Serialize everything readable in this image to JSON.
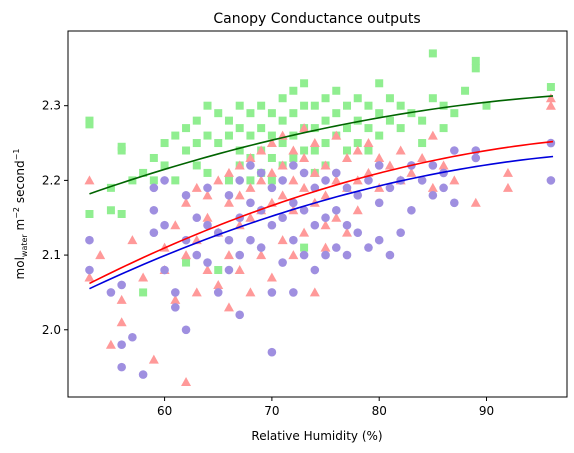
{
  "chart_data": {
    "type": "scatter",
    "title": "Canopy Conductance outputs",
    "xlabel": "Relative Humidity (%)",
    "ylabel": {
      "main": "mol",
      "sub": "water",
      "rest": " m",
      "exp1": "−2",
      "mid": " second",
      "exp2": "−1"
    },
    "xlim": [
      51,
      97.5
    ],
    "ylim": [
      1.91,
      2.4
    ],
    "x_ticks": [
      60,
      70,
      80,
      90
    ],
    "y_ticks": [
      2.0,
      2.1,
      2.2,
      2.3
    ],
    "grid": false,
    "legend": "none",
    "series": [
      {
        "marker": "square",
        "color": "#90ee90",
        "points": [
          [
            53,
            2.28
          ],
          [
            53,
            2.275
          ],
          [
            53,
            2.155
          ],
          [
            55,
            2.19
          ],
          [
            55,
            2.16
          ],
          [
            56,
            2.245
          ],
          [
            56,
            2.24
          ],
          [
            56,
            2.155
          ],
          [
            57,
            2.2
          ],
          [
            58,
            2.21
          ],
          [
            58,
            2.05
          ],
          [
            59,
            2.23
          ],
          [
            59,
            2.2
          ],
          [
            60,
            2.22
          ],
          [
            60,
            2.25
          ],
          [
            61,
            2.26
          ],
          [
            61,
            2.2
          ],
          [
            62,
            2.27
          ],
          [
            62,
            2.24
          ],
          [
            62,
            2.09
          ],
          [
            63,
            2.28
          ],
          [
            63,
            2.25
          ],
          [
            63,
            2.22
          ],
          [
            64,
            2.3
          ],
          [
            64,
            2.26
          ],
          [
            64,
            2.21
          ],
          [
            65,
            2.29
          ],
          [
            65,
            2.25
          ],
          [
            65,
            2.08
          ],
          [
            66,
            2.28
          ],
          [
            66,
            2.26
          ],
          [
            66,
            2.2
          ],
          [
            67,
            2.3
          ],
          [
            67,
            2.27
          ],
          [
            67,
            2.24
          ],
          [
            67,
            2.22
          ],
          [
            68,
            2.29
          ],
          [
            68,
            2.26
          ],
          [
            68,
            2.23
          ],
          [
            68,
            2.2
          ],
          [
            69,
            2.3
          ],
          [
            69,
            2.27
          ],
          [
            69,
            2.24
          ],
          [
            69,
            2.21
          ],
          [
            70,
            2.29
          ],
          [
            70,
            2.26
          ],
          [
            70,
            2.23
          ],
          [
            70,
            2.2
          ],
          [
            71,
            2.31
          ],
          [
            71,
            2.28
          ],
          [
            71,
            2.25
          ],
          [
            71,
            2.22
          ],
          [
            72,
            2.32
          ],
          [
            72,
            2.29
          ],
          [
            72,
            2.26
          ],
          [
            72,
            2.23
          ],
          [
            73,
            2.33
          ],
          [
            73,
            2.3
          ],
          [
            73,
            2.27
          ],
          [
            73,
            2.24
          ],
          [
            73,
            2.11
          ],
          [
            74,
            2.3
          ],
          [
            74,
            2.27
          ],
          [
            74,
            2.24
          ],
          [
            74,
            2.21
          ],
          [
            75,
            2.31
          ],
          [
            75,
            2.28
          ],
          [
            75,
            2.25
          ],
          [
            75,
            2.22
          ],
          [
            76,
            2.32
          ],
          [
            76,
            2.29
          ],
          [
            76,
            2.26
          ],
          [
            77,
            2.3
          ],
          [
            77,
            2.27
          ],
          [
            77,
            2.24
          ],
          [
            78,
            2.31
          ],
          [
            78,
            2.28
          ],
          [
            78,
            2.25
          ],
          [
            79,
            2.3
          ],
          [
            79,
            2.27
          ],
          [
            79,
            2.24
          ],
          [
            80,
            2.33
          ],
          [
            80,
            2.29
          ],
          [
            80,
            2.26
          ],
          [
            81,
            2.31
          ],
          [
            81,
            2.28
          ],
          [
            82,
            2.3
          ],
          [
            82,
            2.27
          ],
          [
            83,
            2.29
          ],
          [
            84,
            2.28
          ],
          [
            84,
            2.25
          ],
          [
            85,
            2.37
          ],
          [
            85,
            2.31
          ],
          [
            86,
            2.3
          ],
          [
            86,
            2.27
          ],
          [
            87,
            2.29
          ],
          [
            88,
            2.32
          ],
          [
            89,
            2.36
          ],
          [
            89,
            2.35
          ],
          [
            90,
            2.3
          ],
          [
            96,
            2.325
          ]
        ]
      },
      {
        "marker": "triangle",
        "color": "#ff9999",
        "points": [
          [
            53,
            2.2
          ],
          [
            53,
            2.07
          ],
          [
            54,
            2.1
          ],
          [
            55,
            1.98
          ],
          [
            56,
            2.04
          ],
          [
            56,
            2.01
          ],
          [
            57,
            2.12
          ],
          [
            58,
            2.07
          ],
          [
            59,
            1.96
          ],
          [
            60,
            2.08
          ],
          [
            60,
            2.11
          ],
          [
            61,
            2.14
          ],
          [
            61,
            2.04
          ],
          [
            62,
            2.17
          ],
          [
            62,
            2.1
          ],
          [
            62,
            1.93
          ],
          [
            63,
            2.19
          ],
          [
            63,
            2.12
          ],
          [
            63,
            2.05
          ],
          [
            64,
            2.18
          ],
          [
            64,
            2.15
          ],
          [
            64,
            2.08
          ],
          [
            65,
            2.2
          ],
          [
            65,
            2.13
          ],
          [
            65,
            2.06
          ],
          [
            66,
            2.21
          ],
          [
            66,
            2.17
          ],
          [
            66,
            2.1
          ],
          [
            66,
            2.03
          ],
          [
            67,
            2.22
          ],
          [
            67,
            2.18
          ],
          [
            67,
            2.14
          ],
          [
            67,
            2.08
          ],
          [
            68,
            2.23
          ],
          [
            68,
            2.19
          ],
          [
            68,
            2.15
          ],
          [
            68,
            2.05
          ],
          [
            69,
            2.24
          ],
          [
            69,
            2.2
          ],
          [
            69,
            2.16
          ],
          [
            69,
            2.1
          ],
          [
            70,
            2.25
          ],
          [
            70,
            2.21
          ],
          [
            70,
            2.17
          ],
          [
            70,
            2.07
          ],
          [
            71,
            2.26
          ],
          [
            71,
            2.22
          ],
          [
            71,
            2.18
          ],
          [
            71,
            2.12
          ],
          [
            72,
            2.24
          ],
          [
            72,
            2.2
          ],
          [
            72,
            2.16
          ],
          [
            72,
            2.1
          ],
          [
            73,
            2.27
          ],
          [
            73,
            2.23
          ],
          [
            73,
            2.19
          ],
          [
            73,
            2.13
          ],
          [
            74,
            2.25
          ],
          [
            74,
            2.21
          ],
          [
            74,
            2.17
          ],
          [
            74,
            2.05
          ],
          [
            75,
            2.22
          ],
          [
            75,
            2.18
          ],
          [
            75,
            2.14
          ],
          [
            75,
            2.11
          ],
          [
            76,
            2.26
          ],
          [
            76,
            2.2
          ],
          [
            76,
            2.15
          ],
          [
            77,
            2.23
          ],
          [
            77,
            2.19
          ],
          [
            77,
            2.13
          ],
          [
            78,
            2.24
          ],
          [
            78,
            2.2
          ],
          [
            78,
            2.16
          ],
          [
            79,
            2.25
          ],
          [
            79,
            2.21
          ],
          [
            80,
            2.23
          ],
          [
            80,
            2.19
          ],
          [
            81,
            2.22
          ],
          [
            82,
            2.24
          ],
          [
            82,
            2.2
          ],
          [
            83,
            2.21
          ],
          [
            84,
            2.23
          ],
          [
            85,
            2.26
          ],
          [
            85,
            2.19
          ],
          [
            86,
            2.22
          ],
          [
            87,
            2.2
          ],
          [
            89,
            2.17
          ],
          [
            92,
            2.21
          ],
          [
            92,
            2.19
          ],
          [
            96,
            2.31
          ],
          [
            96,
            2.3
          ]
        ]
      },
      {
        "marker": "circle",
        "color": "#9f8fe0",
        "points": [
          [
            53,
            2.12
          ],
          [
            53,
            2.08
          ],
          [
            55,
            2.05
          ],
          [
            56,
            2.06
          ],
          [
            56,
            1.98
          ],
          [
            56,
            1.95
          ],
          [
            57,
            1.99
          ],
          [
            58,
            1.94
          ],
          [
            59,
            2.19
          ],
          [
            59,
            2.16
          ],
          [
            59,
            2.13
          ],
          [
            60,
            2.2
          ],
          [
            60,
            2.14
          ],
          [
            60,
            2.08
          ],
          [
            61,
            2.05
          ],
          [
            61,
            2.03
          ],
          [
            62,
            2.18
          ],
          [
            62,
            2.12
          ],
          [
            62,
            2.0
          ],
          [
            63,
            2.15
          ],
          [
            63,
            2.1
          ],
          [
            64,
            2.19
          ],
          [
            64,
            2.14
          ],
          [
            64,
            2.09
          ],
          [
            65,
            2.13
          ],
          [
            65,
            2.05
          ],
          [
            66,
            2.18
          ],
          [
            66,
            2.12
          ],
          [
            66,
            2.08
          ],
          [
            67,
            2.2
          ],
          [
            67,
            2.15
          ],
          [
            67,
            2.1
          ],
          [
            67,
            2.02
          ],
          [
            68,
            2.22
          ],
          [
            68,
            2.17
          ],
          [
            68,
            2.12
          ],
          [
            69,
            2.21
          ],
          [
            69,
            2.16
          ],
          [
            69,
            2.11
          ],
          [
            70,
            2.19
          ],
          [
            70,
            2.14
          ],
          [
            70,
            2.05
          ],
          [
            70,
            1.97
          ],
          [
            71,
            2.2
          ],
          [
            71,
            2.15
          ],
          [
            71,
            2.09
          ],
          [
            72,
            2.22
          ],
          [
            72,
            2.17
          ],
          [
            72,
            2.12
          ],
          [
            72,
            2.05
          ],
          [
            73,
            2.21
          ],
          [
            73,
            2.16
          ],
          [
            73,
            2.1
          ],
          [
            74,
            2.19
          ],
          [
            74,
            2.14
          ],
          [
            74,
            2.08
          ],
          [
            75,
            2.2
          ],
          [
            75,
            2.15
          ],
          [
            75,
            2.1
          ],
          [
            76,
            2.21
          ],
          [
            76,
            2.16
          ],
          [
            76,
            2.11
          ],
          [
            77,
            2.19
          ],
          [
            77,
            2.14
          ],
          [
            77,
            2.1
          ],
          [
            78,
            2.18
          ],
          [
            78,
            2.13
          ],
          [
            79,
            2.2
          ],
          [
            79,
            2.11
          ],
          [
            80,
            2.22
          ],
          [
            80,
            2.17
          ],
          [
            80,
            2.12
          ],
          [
            81,
            2.19
          ],
          [
            81,
            2.1
          ],
          [
            82,
            2.2
          ],
          [
            82,
            2.13
          ],
          [
            83,
            2.22
          ],
          [
            83,
            2.16
          ],
          [
            84,
            2.2
          ],
          [
            85,
            2.22
          ],
          [
            85,
            2.18
          ],
          [
            86,
            2.21
          ],
          [
            86,
            2.19
          ],
          [
            87,
            2.24
          ],
          [
            87,
            2.17
          ],
          [
            89,
            2.24
          ],
          [
            89,
            2.23
          ],
          [
            96,
            2.25
          ],
          [
            96,
            2.2
          ]
        ]
      }
    ],
    "lines": [
      {
        "color": "#006400",
        "x": [
          53,
          96.2
        ],
        "y0": 2.182,
        "y1": 2.313,
        "curvature": 0.35
      },
      {
        "color": "#ff0000",
        "x": [
          53,
          96.2
        ],
        "y0": 2.062,
        "y1": 2.252,
        "curvature": 0.35
      },
      {
        "color": "#0000dd",
        "x": [
          53,
          96.2
        ],
        "y0": 2.055,
        "y1": 2.232,
        "curvature": 0.35
      }
    ]
  }
}
